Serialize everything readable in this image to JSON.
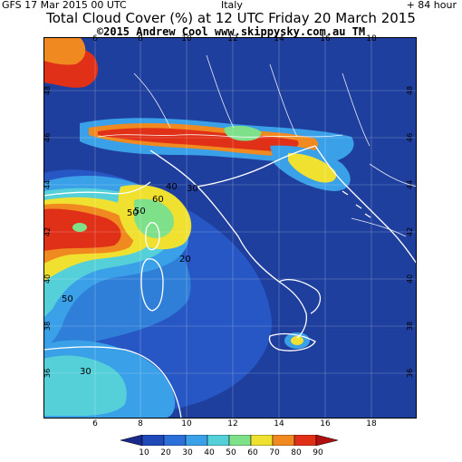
{
  "header": {
    "left": "GFS 17 Mar 2015 00 UTC",
    "middle": "Italy",
    "right": "+ 84 hour",
    "title": "Total Cloud Cover (%) at 12 UTC Friday 20 March 2015",
    "credit": "©2015 Andrew Cool  www.skippysky.com.au  TM"
  },
  "axes": {
    "x_top_ticks": [
      "6",
      "8",
      "10",
      "12",
      "14",
      "16",
      "18"
    ],
    "x_bottom_ticks": [
      "6",
      "8",
      "10",
      "12",
      "14",
      "16",
      "18"
    ],
    "y_left_ticks": [
      "48",
      "46",
      "44",
      "42",
      "40",
      "38",
      "36"
    ],
    "y_right_ticks": [
      "48",
      "46",
      "44",
      "42",
      "40",
      "38",
      "36"
    ]
  },
  "contour_labels": [
    "50",
    "60",
    "40",
    "50",
    "20",
    "30",
    "50",
    "30"
  ],
  "colorbar": {
    "labels": [
      "10",
      "20",
      "30",
      "40",
      "50",
      "60",
      "70",
      "80",
      "90"
    ],
    "colors": [
      "#1a2a8c",
      "#1f48b8",
      "#2d6fd8",
      "#3aa0e8",
      "#56d0d8",
      "#7fe08a",
      "#f0e030",
      "#f08a20",
      "#e03018",
      "#b01010"
    ]
  },
  "map_colors": {
    "sea_background": "#1f3f9e",
    "land_low_cloud": "#233aa0",
    "coastline": "#ffffff"
  }
}
